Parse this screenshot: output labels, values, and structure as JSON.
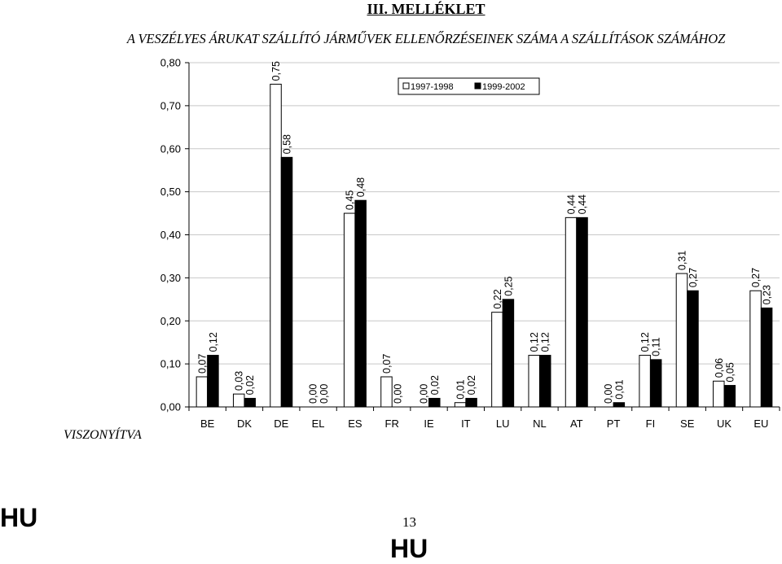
{
  "page": {
    "heading": "III. MELLÉKLET",
    "page_number": "13",
    "side_label": "VISZONYÍTVA",
    "footer_left": "HU",
    "footer_bottom": "HU"
  },
  "chart_data": {
    "type": "bar",
    "title": "A VESZÉLYES ÁRUKAT SZÁLLÍTÓ JÁRMŰVEK ELLENŐRZÉSEINEK SZÁMA A SZÁLLÍTÁSOK SZÁMÁHOZ",
    "categories": [
      "BE",
      "DK",
      "DE",
      "EL",
      "ES",
      "FR",
      "IE",
      "IT",
      "LU",
      "NL",
      "AT",
      "PT",
      "FI",
      "SE",
      "UK",
      "EU"
    ],
    "series": [
      {
        "name": "1997-1998",
        "color": "#ffffff",
        "values": [
          0.07,
          0.03,
          0.75,
          0.0,
          0.45,
          0.07,
          0.0,
          0.01,
          0.22,
          0.12,
          0.44,
          0.0,
          0.12,
          0.31,
          0.06,
          0.27
        ],
        "labels": [
          "0,07",
          "0,03",
          "0,75",
          "0,00",
          "0,45",
          "0,07",
          "0,00",
          "0,01",
          "0,22",
          "0,12",
          "0,44",
          "0,00",
          "0,12",
          "0,31",
          "0,06",
          "0,27"
        ]
      },
      {
        "name": "1999-2002",
        "color": "#000000",
        "values": [
          0.12,
          0.02,
          0.58,
          0.0,
          0.48,
          0.0,
          0.02,
          0.02,
          0.25,
          0.12,
          0.44,
          0.01,
          0.11,
          0.27,
          0.05,
          0.23
        ],
        "labels": [
          "0,12",
          "0,02",
          "0,58",
          "0,00",
          "0,48",
          "0,00",
          "0,02",
          "0,02",
          "0,25",
          "0,12",
          "0,44",
          "0,01",
          "0,11",
          "0,27",
          "0,05",
          "0,23"
        ]
      }
    ],
    "ylim": [
      0,
      0.8
    ],
    "yticks": [
      "0,00",
      "0,10",
      "0,20",
      "0,30",
      "0,40",
      "0,50",
      "0,60",
      "0,70",
      "0,80"
    ],
    "grid": true,
    "legend_position": "top-right"
  }
}
